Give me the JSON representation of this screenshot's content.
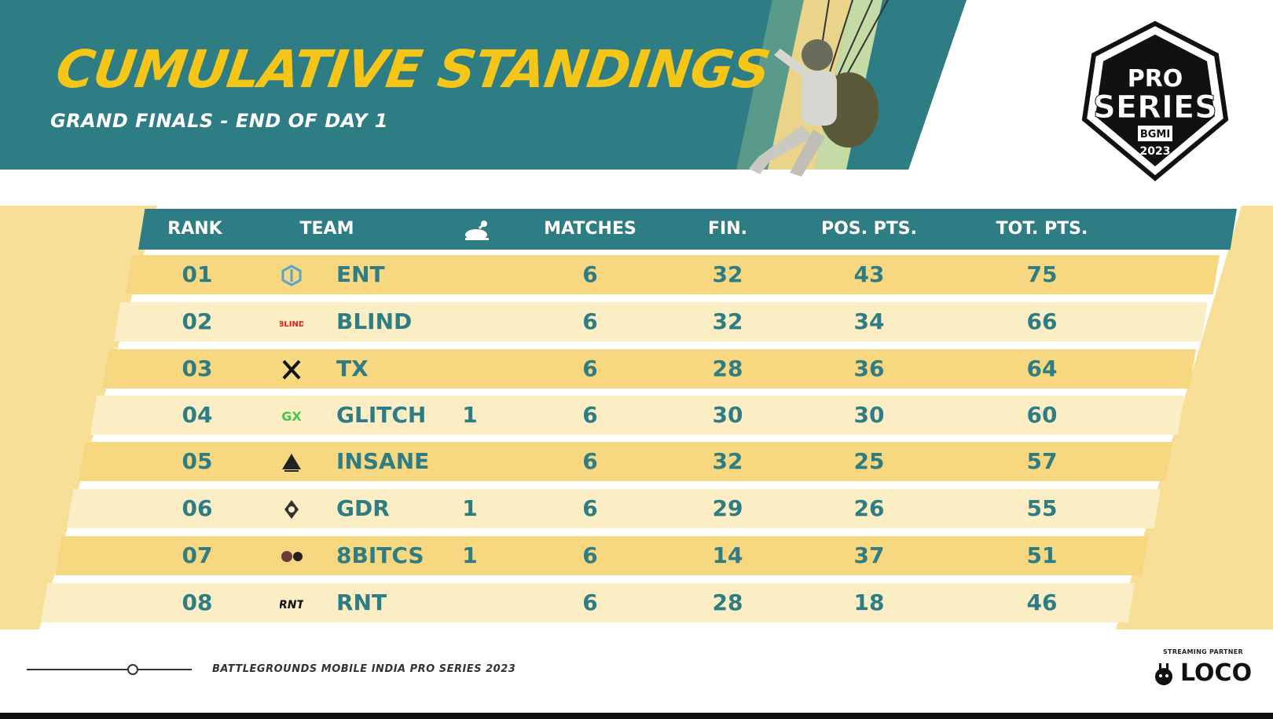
{
  "header": {
    "title": "CUMULATIVE STANDINGS",
    "subtitle": "GRAND FINALS - END OF DAY 1"
  },
  "logo": {
    "line1": "PRO",
    "line2": "SERIES",
    "line3": "BGMI",
    "line4": "2023"
  },
  "table": {
    "columns": {
      "rank": "RANK",
      "team": "TEAM",
      "chicken_icon": "chicken-dinner-icon",
      "matches": "MATCHES",
      "fin": "FIN.",
      "pos": "POS. PTS.",
      "tot": "TOT. PTS."
    },
    "rows": [
      {
        "rank": "01",
        "team": "ENT",
        "wwcd": "",
        "matches": "6",
        "fin": "32",
        "pos": "43",
        "tot": "75"
      },
      {
        "rank": "02",
        "team": "BLIND",
        "wwcd": "",
        "matches": "6",
        "fin": "32",
        "pos": "34",
        "tot": "66"
      },
      {
        "rank": "03",
        "team": "TX",
        "wwcd": "",
        "matches": "6",
        "fin": "28",
        "pos": "36",
        "tot": "64"
      },
      {
        "rank": "04",
        "team": "GLITCH",
        "wwcd": "1",
        "matches": "6",
        "fin": "30",
        "pos": "30",
        "tot": "60"
      },
      {
        "rank": "05",
        "team": "INSANE",
        "wwcd": "",
        "matches": "6",
        "fin": "32",
        "pos": "25",
        "tot": "57"
      },
      {
        "rank": "06",
        "team": "GDR",
        "wwcd": "1",
        "matches": "6",
        "fin": "29",
        "pos": "26",
        "tot": "55"
      },
      {
        "rank": "07",
        "team": "8BITCS",
        "wwcd": "1",
        "matches": "6",
        "fin": "14",
        "pos": "37",
        "tot": "51"
      },
      {
        "rank": "08",
        "team": "RNT",
        "wwcd": "",
        "matches": "6",
        "fin": "28",
        "pos": "18",
        "tot": "46"
      }
    ]
  },
  "footer": {
    "text": "BATTLEGROUNDS MOBILE INDIA PRO SERIES 2023",
    "partner_label": "STREAMING PARTNER",
    "partner_name": "LOCO"
  },
  "colors": {
    "teal": "#2e7d84",
    "yellow": "#f5c518",
    "row_dark": "#f7d780",
    "row_light": "#fbeec5"
  }
}
